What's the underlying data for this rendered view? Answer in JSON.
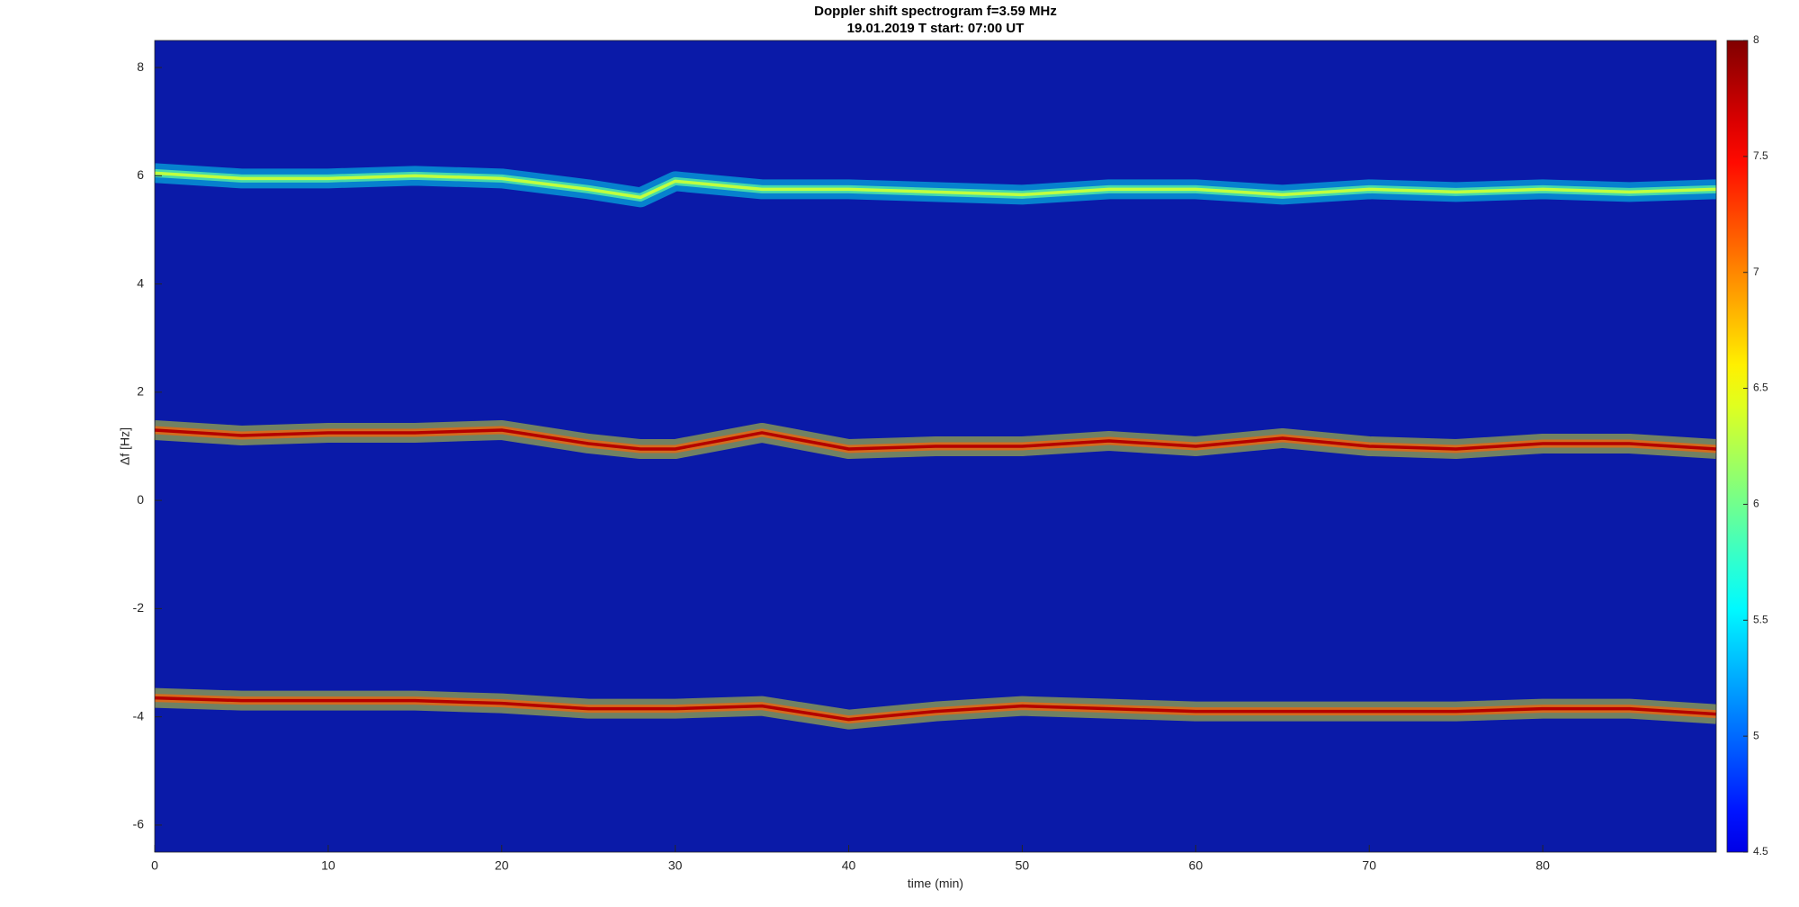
{
  "chart_data": {
    "type": "spectrogram",
    "title": "Doppler shift spectrogram f=3.59 MHz",
    "subtitle": "19.01.2019   T start: 07:00 UT",
    "x_label": "time (min)",
    "y_label": "Δf [Hz]",
    "xlim": [
      0,
      90
    ],
    "xticks": [
      0,
      10,
      20,
      30,
      40,
      50,
      60,
      70,
      80
    ],
    "ylim": [
      -6.5,
      8.5
    ],
    "yticks": [
      -6,
      -4,
      -2,
      0,
      2,
      4,
      6,
      8
    ],
    "colormap": "jet",
    "clim": [
      4.5,
      8
    ],
    "cticks": [
      4.5,
      5,
      5.5,
      6,
      6.5,
      7,
      7.5,
      8
    ],
    "x": [
      0,
      5,
      10,
      15,
      20,
      25,
      28,
      30,
      35,
      40,
      45,
      50,
      55,
      60,
      65,
      70,
      75,
      80,
      85,
      90
    ],
    "series": [
      {
        "level": 6.3,
        "values": [
          6.05,
          5.95,
          5.95,
          6.0,
          5.95,
          5.75,
          5.6,
          5.9,
          5.75,
          5.75,
          5.7,
          5.65,
          5.75,
          5.75,
          5.65,
          5.75,
          5.7,
          5.75,
          5.7,
          5.75
        ]
      },
      {
        "level": 7.8,
        "values": [
          1.3,
          1.2,
          1.25,
          1.25,
          1.3,
          1.05,
          0.95,
          0.95,
          1.25,
          0.95,
          1.0,
          1.0,
          1.1,
          1.0,
          1.15,
          1.0,
          0.95,
          1.05,
          1.05,
          0.95
        ]
      },
      {
        "level": 7.8,
        "values": [
          -3.65,
          -3.7,
          -3.7,
          -3.7,
          -3.75,
          -3.85,
          -3.85,
          -3.85,
          -3.8,
          -4.05,
          -3.9,
          -3.8,
          -3.85,
          -3.9,
          -3.9,
          -3.9,
          -3.9,
          -3.85,
          -3.85,
          -3.95
        ]
      }
    ]
  }
}
